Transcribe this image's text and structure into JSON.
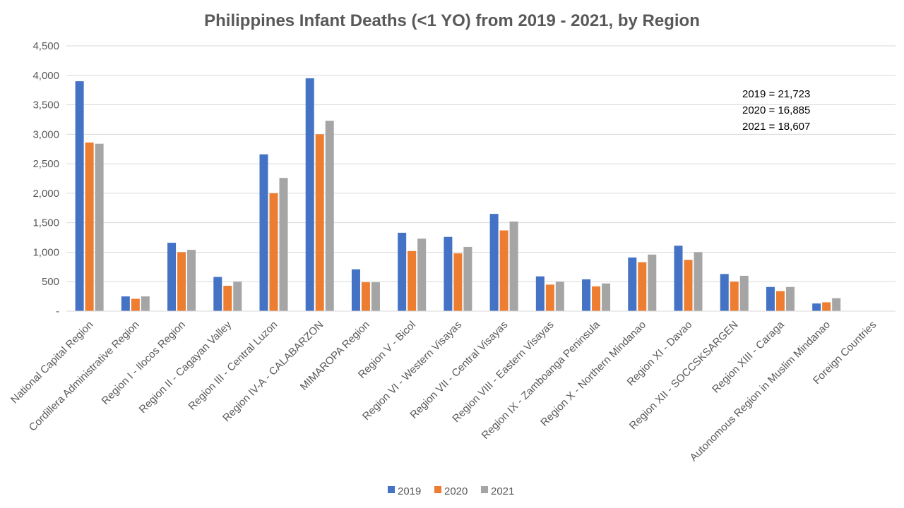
{
  "chart_data": {
    "type": "bar",
    "title": "Philippines Infant Deaths (<1 YO) from 2019 - 2021, by Region",
    "xlabel": "",
    "ylabel": "",
    "ylim": [
      0,
      4500
    ],
    "yticks": [
      0,
      500,
      1000,
      1500,
      2000,
      2500,
      3000,
      3500,
      4000,
      4500
    ],
    "ytick_labels": [
      "-",
      "500",
      "1,000",
      "1,500",
      "2,000",
      "2,500",
      "3,000",
      "3,500",
      "4,000",
      "4,500"
    ],
    "grid": true,
    "legend_position": "bottom",
    "categories": [
      "National Capital Region",
      "Cordillera Administrative Region",
      "Region I - Ilocos Region",
      "Region II - Cagayan Valley",
      "Region III - Central Luzon",
      "Region IV-A - CALABARZON",
      "MIMAROPA Region",
      "Region V - Bicol",
      "Region VI - Western Visayas",
      "Region VII - Central Visayas",
      "Region VIII - Eastern Visayas",
      "Region IX - Zamboanga Peninsula",
      "Region X - Northern Mindanao",
      "Region XI - Davao",
      "Region XII - SOCCSKSARGEN",
      "Region XIII - Caraga",
      "Autonomous Region in Muslim Mindanao",
      "Foreign Countries"
    ],
    "series": [
      {
        "name": "2019",
        "color": "#4472C4",
        "values": [
          3900,
          250,
          1160,
          580,
          2660,
          3950,
          710,
          1330,
          1260,
          1650,
          590,
          540,
          910,
          1110,
          630,
          410,
          130,
          0
        ]
      },
      {
        "name": "2020",
        "color": "#ED7D31",
        "values": [
          2860,
          210,
          1000,
          430,
          2000,
          3000,
          490,
          1020,
          980,
          1370,
          450,
          420,
          830,
          870,
          500,
          340,
          150,
          0
        ]
      },
      {
        "name": "2021",
        "color": "#A5A5A5",
        "values": [
          2840,
          250,
          1040,
          500,
          2260,
          3230,
          490,
          1230,
          1090,
          1520,
          500,
          470,
          960,
          1000,
          600,
          410,
          220,
          0
        ]
      }
    ],
    "annotations": [
      "2019 = 21,723",
      "2020 = 16,885",
      "2021 = 18,607"
    ]
  }
}
